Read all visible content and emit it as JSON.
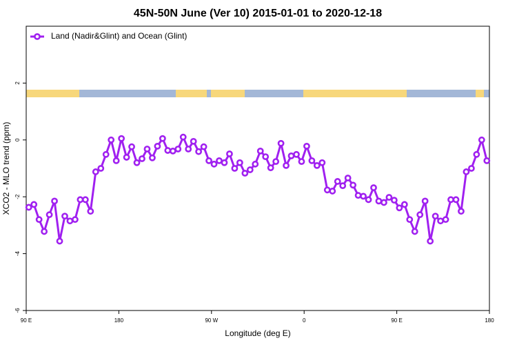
{
  "chart_data": {
    "type": "line",
    "title": "45N-50N June (Ver 10)   2015-01-01 to 2020-12-18",
    "x_label": "Longitude (deg E)",
    "y_label": "XCO2 - MLO trend (ppm)",
    "legend": "top-left",
    "x": [
      92.5,
      97.5,
      102.5,
      107.5,
      112.5,
      117.5,
      122.5,
      127.5,
      132.5,
      137.5,
      142.5,
      147.5,
      152.5,
      157.5,
      162.5,
      167.5,
      172.5,
      177.5,
      182.5,
      187.5,
      192.5,
      197.5,
      202.5,
      207.5,
      212.5,
      217.5,
      222.5,
      227.5,
      232.5,
      237.5,
      242.5,
      247.5,
      252.5,
      257.5,
      262.5,
      267.5,
      272.5,
      277.5,
      282.5,
      287.5,
      292.5,
      297.5,
      302.5,
      307.5,
      312.5,
      317.5,
      322.5,
      327.5,
      332.5,
      337.5,
      342.5,
      347.5,
      352.5,
      357.5,
      362.5,
      367.5,
      372.5,
      377.5,
      382.5,
      387.5,
      392.5,
      397.5,
      402.5,
      407.5,
      412.5,
      417.5,
      422.5,
      427.5,
      432.5,
      437.5,
      442.5,
      447.5,
      452.5,
      457.5,
      462.5,
      467.5,
      472.5,
      477.5,
      482.5,
      487.5,
      492.5,
      497.5,
      502.5,
      507.5,
      512.5,
      517.5,
      522.5,
      527.5,
      532.5,
      537.5
    ],
    "series": [
      {
        "name": "Land (Nadir&Glint) and Ocean (Glint)",
        "color": "#a020f0",
        "values": [
          -2.37,
          -2.27,
          -2.8,
          -3.22,
          -2.63,
          -2.15,
          -3.56,
          -2.68,
          -2.85,
          -2.8,
          -2.1,
          -2.1,
          -2.51,
          -1.12,
          -1.0,
          -0.51,
          0,
          -0.73,
          0.05,
          -0.61,
          -0.24,
          -0.8,
          -0.66,
          -0.32,
          -0.63,
          -0.22,
          0.05,
          -0.37,
          -0.39,
          -0.32,
          0.1,
          -0.32,
          -0.05,
          -0.41,
          -0.24,
          -0.73,
          -0.85,
          -0.73,
          -0.8,
          -0.49,
          -1.0,
          -0.8,
          -1.17,
          -1.05,
          -0.85,
          -0.39,
          -0.59,
          -0.98,
          -0.76,
          -0.12,
          -0.9,
          -0.56,
          -0.51,
          -0.76,
          -0.22,
          -0.73,
          -0.9,
          -0.8,
          -1.76,
          -1.8,
          -1.46,
          -1.61,
          -1.34,
          -1.59,
          -1.95,
          -1.98,
          -2.1,
          -1.68,
          -2.15,
          -2.2,
          -2.02,
          -2.12,
          -2.39,
          -2.27,
          -2.8,
          -3.22,
          -2.63,
          -2.15,
          -3.56,
          -2.68,
          -2.85,
          -2.8,
          -2.1,
          -2.1,
          -2.51,
          -1.12,
          -1.0,
          -0.51,
          0,
          -0.73
        ]
      }
    ],
    "xlim": [
      90,
      540
    ],
    "xticks": [
      {
        "value": 90,
        "label": "90 E"
      },
      180,
      {
        "value": 270,
        "label": "90 W"
      },
      {
        "value": 360,
        "label": "0"
      },
      {
        "value": 450,
        "label": "90 E"
      },
      {
        "value": 540,
        "label": "180"
      }
    ],
    "ylim": [
      -6,
      4
    ],
    "yticks": [
      -6,
      -4,
      -2,
      0,
      2
    ]
  }
}
